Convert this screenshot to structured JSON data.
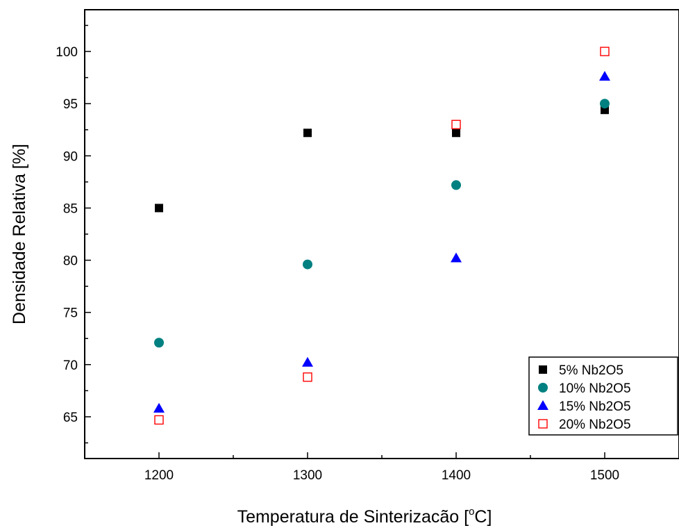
{
  "chart_data": {
    "type": "scatter",
    "title": "",
    "xlabel": "Temperatura de Sinterizacão [",
    "xlabel_sup": "o",
    "xlabel_end": "C]",
    "ylabel": "Densidade Relativa [%]",
    "xlim": [
      1150,
      1550
    ],
    "ylim": [
      61,
      104
    ],
    "xticks": [
      1200,
      1300,
      1400,
      1500
    ],
    "yticks": [
      65,
      70,
      75,
      80,
      85,
      90,
      95,
      100
    ],
    "x": [
      1200,
      1300,
      1400,
      1500
    ],
    "grid": false,
    "legend_position": "bottom-right",
    "series": [
      {
        "name": "5%  Nb2O5",
        "marker": "square-filled",
        "color": "#000000",
        "values": [
          85.0,
          92.2,
          92.2,
          94.4
        ]
      },
      {
        "name": "10% Nb2O5",
        "marker": "circle-filled",
        "color": "#008080",
        "values": [
          72.1,
          79.6,
          87.2,
          95.0
        ]
      },
      {
        "name": "15% Nb2O5",
        "marker": "triangle-filled",
        "color": "#0000ff",
        "values": [
          65.8,
          70.2,
          80.2,
          97.6
        ]
      },
      {
        "name": "20% Nb2O5",
        "marker": "square-open",
        "color": "#ff0000",
        "values": [
          64.7,
          68.8,
          93.0,
          100.0
        ]
      }
    ]
  }
}
